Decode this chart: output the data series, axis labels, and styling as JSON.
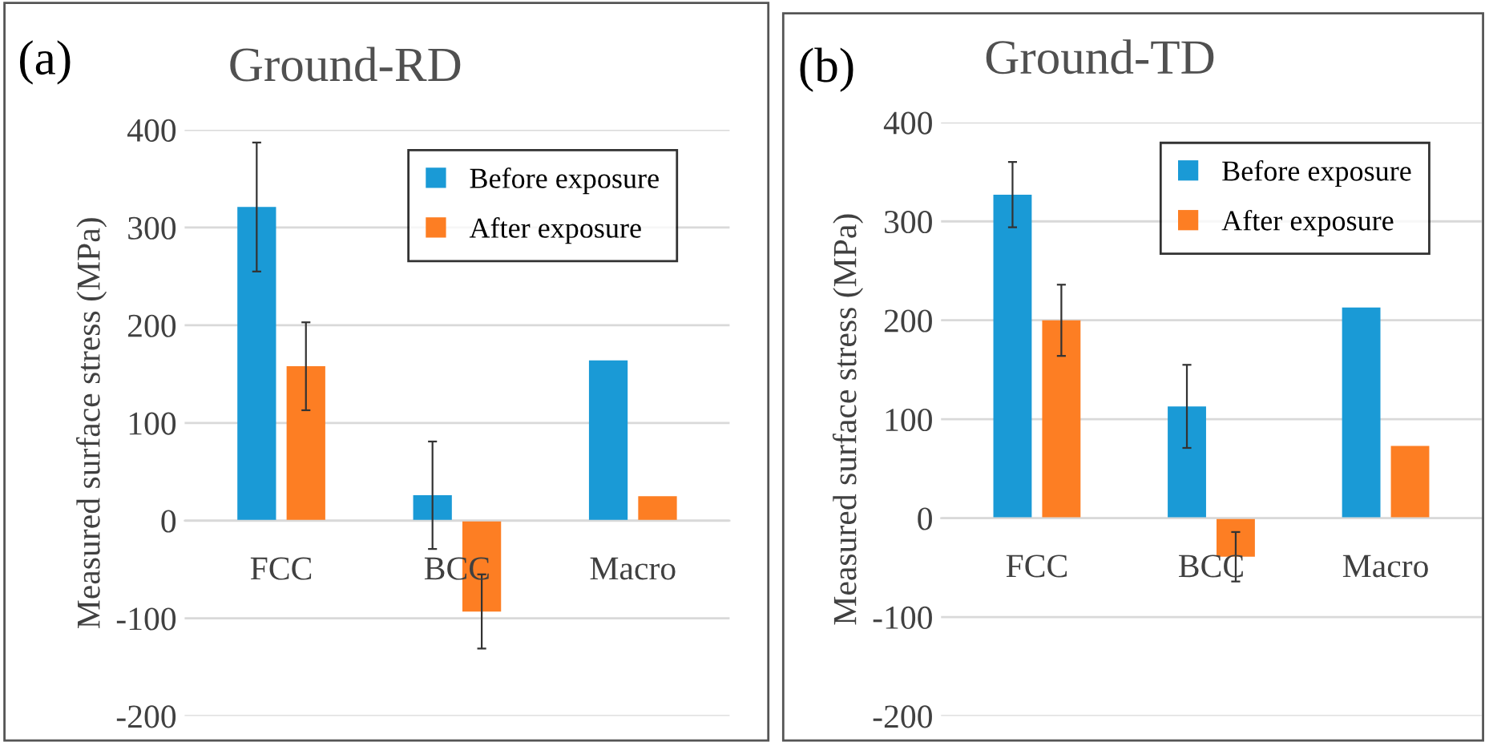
{
  "chart_data": [
    {
      "type": "bar",
      "title": "Ground-RD",
      "annotations": [
        "(a)"
      ],
      "ylabel": "Measured surface stress (MPa)",
      "categories": [
        "FCC",
        "BCC",
        "Macro"
      ],
      "series": [
        {
          "name": "Before exposure",
          "color": "#1a9ad6",
          "values": [
            321,
            26,
            164
          ],
          "errors": [
            66,
            55,
            null
          ]
        },
        {
          "name": "After exposure",
          "color": "#fd7e23",
          "values": [
            158,
            -93,
            25
          ],
          "errors": [
            45,
            38,
            null
          ]
        }
      ],
      "ylim": [
        -200,
        400
      ],
      "yticks": [
        -200,
        -100,
        0,
        100,
        200,
        300,
        400
      ],
      "grid": "y",
      "legend": "top right"
    },
    {
      "type": "bar",
      "title": "Ground-TD",
      "annotations": [
        "(b)"
      ],
      "ylabel": "Measured surface stress (MPa)",
      "categories": [
        "FCC",
        "BCC",
        "Macro"
      ],
      "series": [
        {
          "name": "Before exposure",
          "color": "#1a9ad6",
          "values": [
            327,
            113,
            213
          ],
          "errors": [
            33,
            42,
            null
          ]
        },
        {
          "name": "After exposure",
          "color": "#fd7e23",
          "values": [
            200,
            -39,
            73
          ],
          "errors": [
            36,
            25,
            null
          ]
        }
      ],
      "ylim": [
        -200,
        400
      ],
      "yticks": [
        -200,
        -100,
        0,
        100,
        200,
        300,
        400
      ],
      "grid": "y",
      "legend": "top right"
    }
  ]
}
